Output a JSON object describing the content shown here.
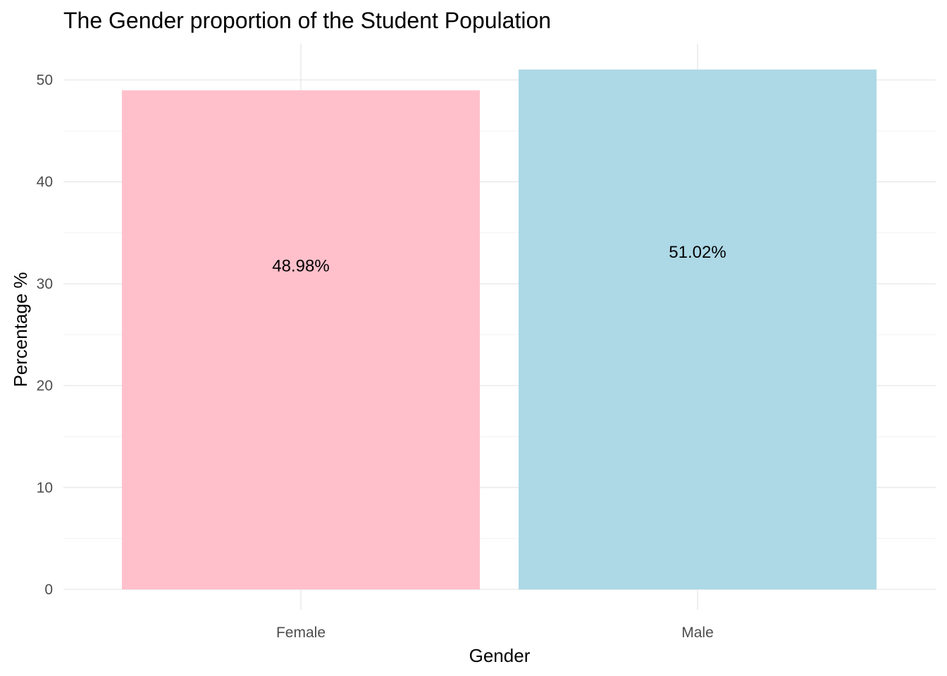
{
  "chart_data": {
    "type": "bar",
    "title": "The Gender proportion of the Student Population",
    "xlabel": "Gender",
    "ylabel": "Percentage %",
    "categories": [
      "Female",
      "Male"
    ],
    "values": [
      48.98,
      51.02
    ],
    "data_labels": [
      "48.98%",
      "51.02%"
    ],
    "colors": [
      "#ffc0cb",
      "#add8e6"
    ],
    "ylim": [
      0,
      53.6
    ],
    "yticks": [
      0,
      10,
      20,
      30,
      40,
      50
    ],
    "grid": true,
    "legend": "none"
  }
}
